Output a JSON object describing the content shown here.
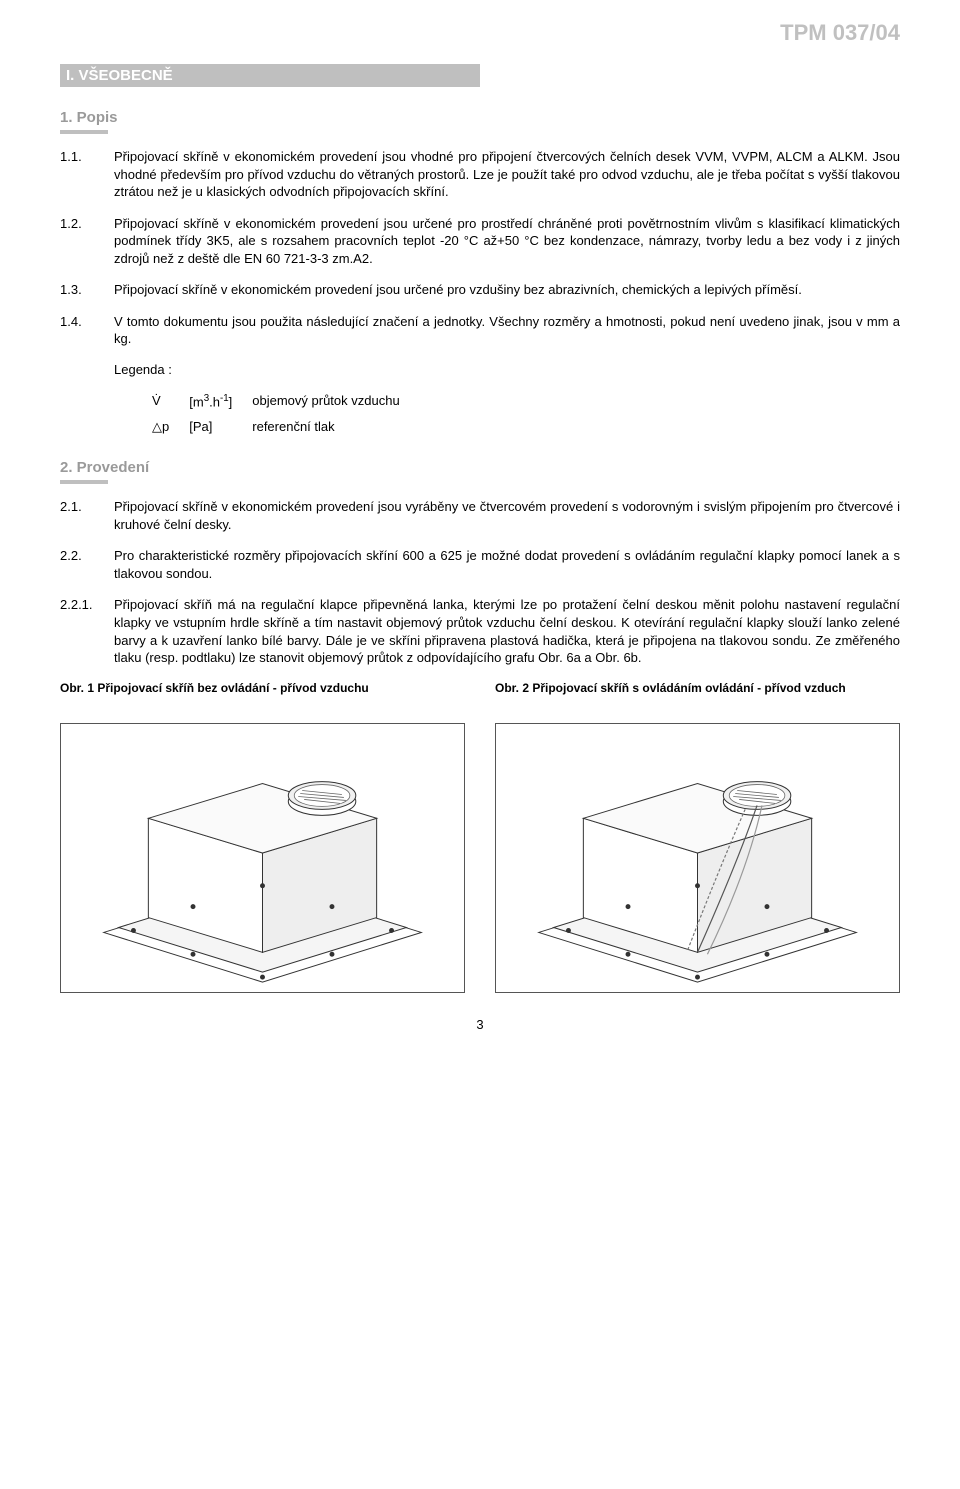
{
  "header": {
    "doc_code": "TPM 037/04"
  },
  "section1": {
    "heading": "I. VŠEOBECNĚ",
    "sub1": {
      "title": "1. Popis"
    },
    "p11": {
      "num": "1.1.",
      "text": "Připojovací skříně v ekonomickém provedení jsou vhodné pro připojení čtvercových čelních desek VVM, VVPM, ALCM a ALKM. Jsou vhodné především pro přívod vzduchu do větraných prostorů. Lze je použít také pro odvod vzduchu, ale je třeba počítat s vyšší tlakovou ztrátou než je u klasických odvodních připojovacích skříní."
    },
    "p12": {
      "num": "1.2.",
      "text": "Připojovací skříně v ekonomickém provedení jsou určené pro prostředí chráněné proti povětrnostním vlivům s klasifikací klimatických podmínek třídy 3K5, ale s rozsahem pracovních teplot -20 °C až+50 °C bez kondenzace, námrazy, tvorby ledu a bez vody i z jiných zdrojů než z deště dle EN 60 721-3-3 zm.A2."
    },
    "p13": {
      "num": "1.3.",
      "text": "Připojovací skříně v ekonomickém provedení jsou určené pro vzdušiny bez abrazivních, chemických a lepivých příměsí."
    },
    "p14": {
      "num": "1.4.",
      "text": "V tomto dokumentu jsou použita následující značení a jednotky. Všechny rozměry a hmotnosti, pokud není uvedeno jinak, jsou v mm a kg."
    },
    "legend": {
      "label": "Legenda :",
      "rows": [
        {
          "sym": "V̇",
          "unit_html": "[m<sup>3</sup>.h<sup>-1</sup>]",
          "desc": "objemový průtok vzduchu"
        },
        {
          "sym": "△p",
          "unit_html": "[Pa]",
          "desc": "referenční tlak"
        }
      ]
    },
    "sub2": {
      "title": "2. Provedení"
    },
    "p21": {
      "num": "2.1.",
      "text": "Připojovací skříně v ekonomickém provedení jsou vyráběny ve čtvercovém provedení s vodorovným i svislým připojením pro čtvercové i kruhové čelní desky."
    },
    "p22": {
      "num": "2.2.",
      "text": "Pro charakteristické rozměry připojovacích skříní 600 a 625 je možné dodat provedení s ovládáním regulační klapky pomocí lanek a s tlakovou sondou."
    },
    "p221": {
      "num": "2.2.1.",
      "text": "Připojovací skříň má na regulační klapce připevněná lanka, kterými lze po protažení čelní deskou měnit polohu nastavení regulační klapky ve vstupním hrdle skříně a tím nastavit objemový průtok vzduchu čelní deskou. K otevírání regulační klapky slouží lanko zelené barvy a k uzavření lanko bílé barvy. Dále je ve skříni připravena plastová hadička, která je připojena na tlakovou sondu. Ze změřeného tlaku (resp. podtlaku) lze stanovit objemový průtok z odpovídajícího grafu Obr. 6a a Obr. 6b."
    },
    "figures": {
      "f1": {
        "caption": "Obr. 1  Připojovací skříň bez ovládání - přívod vzduchu"
      },
      "f2": {
        "caption": "Obr. 2  Připojovací skříň s ovládáním ovládání - přívod vzduch"
      }
    }
  },
  "page_number": "3",
  "style": {
    "heading_bg": "#bfbfbf",
    "heading_fg": "#ffffff",
    "subheading_color": "#9a9a9a",
    "doc_code_color": "#c0c0c0",
    "body_fontsize": 13,
    "doc_code_fontsize": 22
  }
}
